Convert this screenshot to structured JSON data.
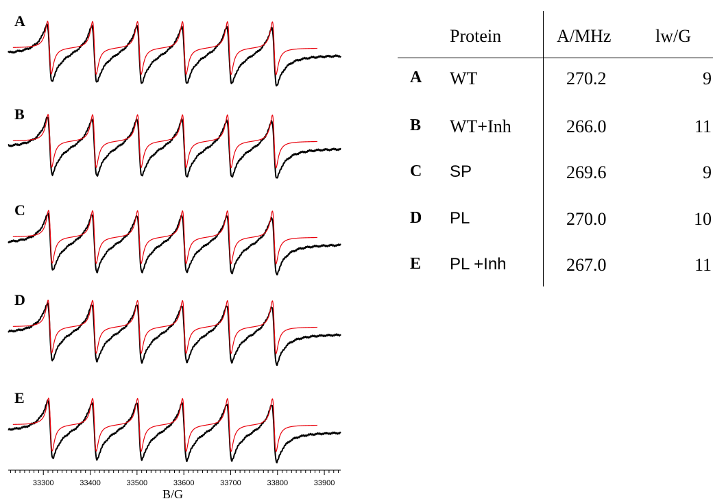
{
  "colors": {
    "experimental": "#000000",
    "simulation": "#e8000b",
    "axis": "#000000"
  },
  "chart_data": {
    "type": "line",
    "title": "",
    "xlabel": "B/G",
    "ylabel": "",
    "xlim": [
      33225,
      33935
    ],
    "xticks": [
      33300,
      33400,
      33500,
      33600,
      33700,
      33800,
      33900
    ],
    "tick_labels": [
      "33300",
      "33400",
      "33500",
      "33600",
      "33700",
      "33800",
      "33900"
    ],
    "panels": [
      {
        "label": "A",
        "line_centers_G": [
          33313,
          33409,
          33505,
          33601,
          33697,
          33793
        ],
        "series": [
          {
            "color": "#000000"
          },
          {
            "color": "#e8000b"
          }
        ]
      },
      {
        "label": "B",
        "line_centers_G": [
          33314,
          33409,
          33505,
          33601,
          33697,
          33793
        ],
        "series": [
          {
            "color": "#000000"
          },
          {
            "color": "#e8000b"
          }
        ]
      },
      {
        "label": "C",
        "line_centers_G": [
          33315,
          33409,
          33505,
          33601,
          33697,
          33793
        ],
        "series": [
          {
            "color": "#000000"
          },
          {
            "color": "#e8000b"
          }
        ]
      },
      {
        "label": "D",
        "line_centers_G": [
          33314,
          33409,
          33505,
          33601,
          33697,
          33793
        ],
        "series": [
          {
            "color": "#000000"
          },
          {
            "color": "#e8000b"
          }
        ]
      },
      {
        "label": "E",
        "line_centers_G": [
          33315,
          33409,
          33505,
          33601,
          33697,
          33793
        ],
        "series": [
          {
            "color": "#000000"
          },
          {
            "color": "#e8000b"
          }
        ]
      }
    ]
  },
  "table": {
    "headers": [
      "Protein",
      "A/MHz",
      "lw/G"
    ],
    "rows": [
      {
        "label": "A",
        "protein": "WT",
        "a_mhz": "270.2",
        "lw_g": "9",
        "sans": false
      },
      {
        "label": "B",
        "protein": "WT+Inh",
        "a_mhz": "266.0",
        "lw_g": "11",
        "sans": false
      },
      {
        "label": "C",
        "protein": "SP",
        "a_mhz": "269.6",
        "lw_g": "9",
        "sans": true
      },
      {
        "label": "D",
        "protein": "PL",
        "a_mhz": "270.0",
        "lw_g": "10",
        "sans": true
      },
      {
        "label": "E",
        "protein": "PL +Inh",
        "a_mhz": "267.0",
        "lw_g": "11",
        "sans": true
      }
    ]
  }
}
